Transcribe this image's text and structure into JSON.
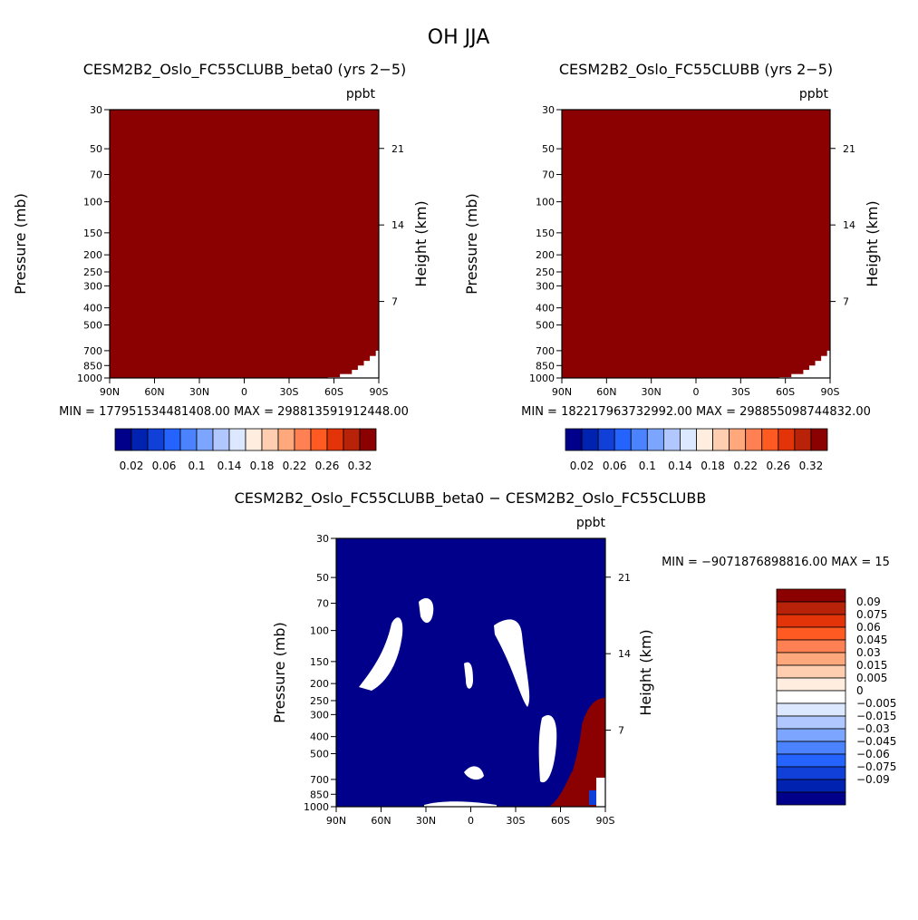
{
  "figure": {
    "title": "OH JJA"
  },
  "chart_data": [
    {
      "type": "heatmap",
      "id": "panel1",
      "title": "CESM2B2_Oslo_FC55CLUBB_beta0 (yrs 2−5)",
      "units": "ppbt",
      "ylabel": "Pressure (mb)",
      "ylabel_right": "Height (km)",
      "x_ticks": [
        "90N",
        "60N",
        "30N",
        "0",
        "30S",
        "60S",
        "90S"
      ],
      "x_tick_values": [
        90,
        60,
        30,
        0,
        -30,
        -60,
        -90
      ],
      "y_ticks": [
        "30",
        "50",
        "70",
        "100",
        "150",
        "200",
        "250",
        "300",
        "400",
        "500",
        "700",
        "850",
        "1000"
      ],
      "y_tick_values": [
        30,
        50,
        70,
        100,
        150,
        200,
        250,
        300,
        400,
        500,
        700,
        850,
        1000
      ],
      "height_ticks": [
        "21",
        "14",
        "7"
      ],
      "height_tick_values": [
        21,
        14,
        7
      ],
      "xlim": [
        90,
        -90
      ],
      "ylim": [
        30,
        1000
      ],
      "stats": "MIN = 177951534481408.00   MAX = 298813591912448.00",
      "fill_color": "#8b0000",
      "colorbar": {
        "orientation": "horizontal",
        "colors": [
          "#00008b",
          "#0022b0",
          "#1040d8",
          "#2563ff",
          "#4b83ff",
          "#7ca5ff",
          "#b0c8ff",
          "#dce8ff",
          "#ffeedf",
          "#ffcdb0",
          "#ffa87c",
          "#ff8052",
          "#ff5a22",
          "#e23408",
          "#b82208",
          "#8b0000"
        ],
        "labels": [
          "0.02",
          "0.06",
          "0.1",
          "0.14",
          "0.18",
          "0.22",
          "0.26",
          "0.32"
        ]
      }
    },
    {
      "type": "heatmap",
      "id": "panel2",
      "title": "CESM2B2_Oslo_FC55CLUBB (yrs 2−5)",
      "units": "ppbt",
      "ylabel": "Pressure (mb)",
      "ylabel_right": "Height (km)",
      "x_ticks": [
        "90N",
        "60N",
        "30N",
        "0",
        "30S",
        "60S",
        "90S"
      ],
      "x_tick_values": [
        90,
        60,
        30,
        0,
        -30,
        -60,
        -90
      ],
      "y_ticks": [
        "30",
        "50",
        "70",
        "100",
        "150",
        "200",
        "250",
        "300",
        "400",
        "500",
        "700",
        "850",
        "1000"
      ],
      "y_tick_values": [
        30,
        50,
        70,
        100,
        150,
        200,
        250,
        300,
        400,
        500,
        700,
        850,
        1000
      ],
      "height_ticks": [
        "21",
        "14",
        "7"
      ],
      "height_tick_values": [
        21,
        14,
        7
      ],
      "xlim": [
        90,
        -90
      ],
      "ylim": [
        30,
        1000
      ],
      "stats": "MIN = 182217963732992.00   MAX = 298855098744832.00",
      "fill_color": "#8b0000",
      "colorbar": {
        "orientation": "horizontal",
        "colors": [
          "#00008b",
          "#0022b0",
          "#1040d8",
          "#2563ff",
          "#4b83ff",
          "#7ca5ff",
          "#b0c8ff",
          "#dce8ff",
          "#ffeedf",
          "#ffcdb0",
          "#ffa87c",
          "#ff8052",
          "#ff5a22",
          "#e23408",
          "#b82208",
          "#8b0000"
        ],
        "labels": [
          "0.02",
          "0.06",
          "0.1",
          "0.14",
          "0.18",
          "0.22",
          "0.26",
          "0.32"
        ]
      }
    },
    {
      "type": "heatmap",
      "id": "panel3",
      "title": "CESM2B2_Oslo_FC55CLUBB_beta0 − CESM2B2_Oslo_FC55CLUBB",
      "units": "ppbt",
      "ylabel": "Pressure (mb)",
      "ylabel_right": "Height (km)",
      "x_ticks": [
        "90N",
        "60N",
        "30N",
        "0",
        "30S",
        "60S",
        "90S"
      ],
      "x_tick_values": [
        90,
        60,
        30,
        0,
        -30,
        -60,
        -90
      ],
      "y_ticks": [
        "30",
        "50",
        "70",
        "100",
        "150",
        "200",
        "250",
        "300",
        "400",
        "500",
        "700",
        "850",
        "1000"
      ],
      "y_tick_values": [
        30,
        50,
        70,
        100,
        150,
        200,
        250,
        300,
        400,
        500,
        700,
        850,
        1000
      ],
      "height_ticks": [
        "21",
        "14",
        "7"
      ],
      "height_tick_values": [
        21,
        14,
        7
      ],
      "xlim": [
        90,
        -90
      ],
      "ylim": [
        30,
        1000
      ],
      "stats": "MIN = −9071876898816.00   MAX = 15",
      "fill_color": "#00008b",
      "colorbar": {
        "orientation": "vertical",
        "colors": [
          "#8b0000",
          "#b82208",
          "#e23408",
          "#ff5a22",
          "#ff8052",
          "#ffa87c",
          "#ffcdb0",
          "#ffeedf",
          "#ffffff",
          "#dce8ff",
          "#b0c8ff",
          "#7ca5ff",
          "#4b83ff",
          "#2563ff",
          "#1040d8",
          "#0022b0",
          "#00008b"
        ],
        "labels": [
          "0.09",
          "0.075",
          "0.06",
          "0.045",
          "0.03",
          "0.015",
          "0.005",
          "0",
          "−0.005",
          "−0.015",
          "−0.03",
          "−0.045",
          "−0.06",
          "−0.075",
          "−0.09"
        ]
      }
    }
  ]
}
